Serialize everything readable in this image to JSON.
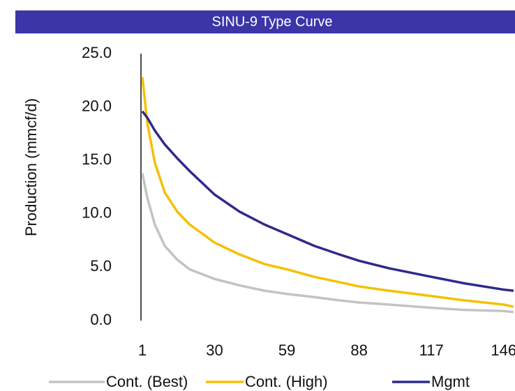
{
  "chart_data": {
    "type": "line",
    "title": "SINU-9 Type Curve",
    "y_label": "Production (mmcf/d)",
    "x": [
      1,
      3,
      6,
      10,
      15,
      20,
      30,
      40,
      50,
      59,
      70,
      80,
      88,
      100,
      117,
      130,
      146,
      150
    ],
    "xlim": [
      1,
      150
    ],
    "xticks": [
      1,
      30,
      59,
      88,
      117,
      146
    ],
    "ylim": [
      0,
      25
    ],
    "yticks": [
      {
        "value": 0,
        "label": "0.0"
      },
      {
        "value": 5,
        "label": "5.0"
      },
      {
        "value": 10,
        "label": "10.0"
      },
      {
        "value": 15,
        "label": "15.0"
      },
      {
        "value": 20,
        "label": "20.0"
      },
      {
        "value": 25,
        "label": "25.0"
      }
    ],
    "grid": false,
    "legend": "bottom",
    "series": [
      {
        "name": "Cont. (Best)",
        "color": "#c3c3c3",
        "values": [
          13.8,
          11.5,
          9.0,
          7.0,
          5.7,
          4.8,
          3.9,
          3.3,
          2.8,
          2.5,
          2.2,
          1.9,
          1.7,
          1.5,
          1.2,
          1.0,
          0.9,
          0.8
        ]
      },
      {
        "name": "Cont. (High)",
        "color": "#f5c000",
        "values": [
          22.8,
          18.5,
          14.8,
          12.0,
          10.2,
          9.0,
          7.3,
          6.2,
          5.3,
          4.8,
          4.1,
          3.6,
          3.2,
          2.8,
          2.3,
          1.9,
          1.5,
          1.3
        ]
      },
      {
        "name": "Mgmt",
        "color": "#2e2a8c",
        "values": [
          19.6,
          19.0,
          17.8,
          16.5,
          15.2,
          14.0,
          11.8,
          10.2,
          9.0,
          8.1,
          7.0,
          6.2,
          5.6,
          4.9,
          4.1,
          3.5,
          2.9,
          2.8
        ]
      }
    ]
  }
}
